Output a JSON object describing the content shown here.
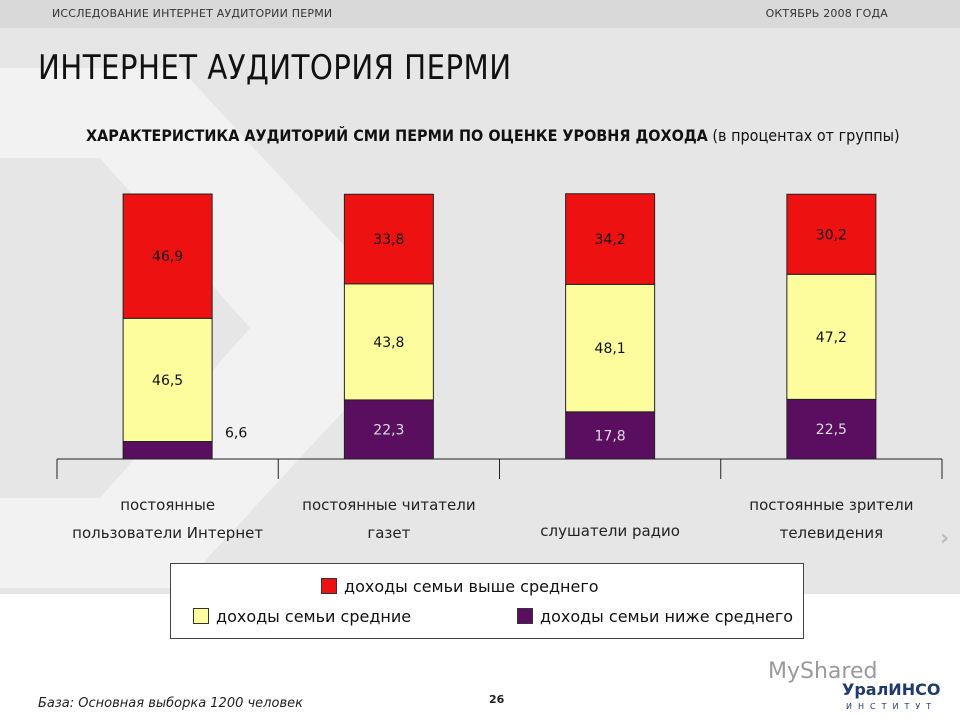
{
  "header": {
    "left": "ИССЛЕДОВАНИЕ ИНТЕРНЕТ АУДИТОРИИ ПЕРМИ",
    "right": "ОКТЯБРЬ 2008 ГОДА"
  },
  "page_title": "ИНТЕРНЕТ АУДИТОРИЯ ПЕРМИ",
  "subtitle_bold": "ХАРАКТЕРИСТИКА АУДИТОРИЙ СМИ ПЕРМИ ПО ОЦЕНКЕ УРОВНЯ ДОХОДА",
  "subtitle_rest": " (в процентах от группы)",
  "legend": {
    "high": "доходы семьи выше среднего",
    "mid": "доходы семьи средние",
    "low": "доходы семьи ниже среднего"
  },
  "footer": {
    "base": "База: Основная выборка 1200 человек",
    "page": "26"
  },
  "logo": {
    "watermark": "MyShared",
    "name": "УралИНСО",
    "sub": "ИНСТИТУТ"
  },
  "colors": {
    "high": "#ee1111",
    "mid": "#fdfd9d",
    "low": "#5a0e60",
    "background_band": "#e6e6e6"
  },
  "chart_data": {
    "type": "bar",
    "stacked": true,
    "categories": [
      [
        "постоянные",
        "пользователи Интернет"
      ],
      [
        "постоянные читатели",
        "газет"
      ],
      [
        "слушатели радио"
      ],
      [
        "постоянные зрители",
        "телевидения"
      ]
    ],
    "series": [
      {
        "name": "доходы семьи ниже среднего",
        "key": "low",
        "values": [
          6.6,
          22.3,
          17.8,
          22.5
        ],
        "labels": [
          "6,6",
          "22,3",
          "17,8",
          "22,5"
        ]
      },
      {
        "name": "доходы семьи средние",
        "key": "mid",
        "values": [
          46.5,
          43.8,
          48.1,
          47.2
        ],
        "labels": [
          "46,5",
          "43,8",
          "48,1",
          "47,2"
        ]
      },
      {
        "name": "доходы семьи выше среднего",
        "key": "high",
        "values": [
          46.9,
          33.8,
          34.2,
          30.2
        ],
        "labels": [
          "46,9",
          "33,8",
          "34,2",
          "30,2"
        ]
      }
    ],
    "ylim": [
      0,
      100
    ],
    "grid": false
  }
}
